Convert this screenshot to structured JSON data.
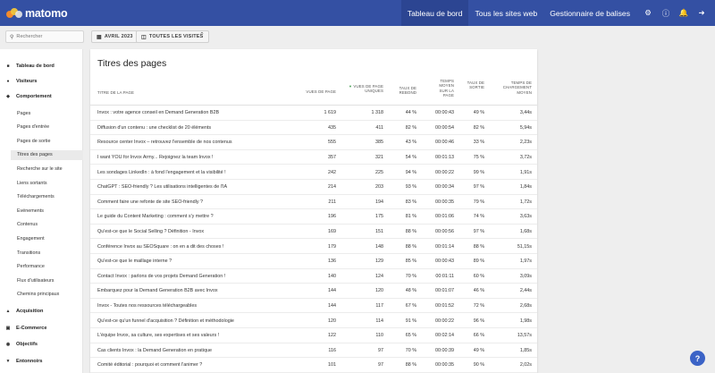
{
  "brand": {
    "name": "matomo",
    "colors": {
      "topbar": "#3450a3",
      "accent": "#3b63c6"
    }
  },
  "topnav": [
    {
      "label": "Tableau de bord",
      "active": true
    },
    {
      "label": "Tous les sites web",
      "active": false
    },
    {
      "label": "Gestionnaire de balises",
      "active": false
    }
  ],
  "topicons": [
    "gear-icon",
    "info-icon",
    "bell-icon",
    "logout-icon"
  ],
  "controls": {
    "search_placeholder": "Rechercher",
    "period_label": "AVRIL 2023",
    "segment_label": "TOUTES LES VISITES"
  },
  "sidebar": {
    "categories": [
      {
        "label": "Tableau de bord",
        "icon": "dashboard-icon"
      },
      {
        "label": "Visiteurs",
        "icon": "visitors-icon"
      },
      {
        "label": "Comportement",
        "icon": "behaviour-icon"
      },
      {
        "label": "Acquisition",
        "icon": "acquisition-icon"
      },
      {
        "label": "E-Commerce",
        "icon": "ecommerce-icon"
      },
      {
        "label": "Objectifs",
        "icon": "goals-icon"
      },
      {
        "label": "Entonnoirs",
        "icon": "funnels-icon"
      }
    ],
    "items": [
      "Pages",
      "Pages d'entrée",
      "Pages de sortie",
      "Titres des pages",
      "Recherche sur le site",
      "Liens sortants",
      "Téléchargements",
      "Evénements",
      "Contenus",
      "Engagement",
      "Transitions",
      "Performance",
      "Flux d'utilisateurs",
      "Chemins principaux"
    ],
    "active_item": "Titres des pages"
  },
  "report": {
    "title": "Titres des pages",
    "columns": {
      "label": "TITRE DE LA PAGE",
      "pageviews": "VUES DE PAGE",
      "unique": "VUES DE PAGE UNIQUES",
      "bounce": "TAUX DE REBOND",
      "time": "TEMPS MOYEN SUR LA PAGE",
      "exit": "TAUX DE SORTIE",
      "load": "TEMPS DE CHARGEMENT MOYEN"
    },
    "rows": [
      {
        "label": "Invox : votre agence conseil en Demand Generation B2B",
        "pageviews": "1 619",
        "unique": "1 318",
        "bounce": "44 %",
        "time": "00:00:43",
        "exit": "49 %",
        "load": "3,44s"
      },
      {
        "label": "Diffusion d'un contenu : une checklist de 20 éléments",
        "pageviews": "435",
        "unique": "411",
        "bounce": "82 %",
        "time": "00:00:54",
        "exit": "82 %",
        "load": "5,94s"
      },
      {
        "label": "Resource center Invox – retrouvez l'ensemble de nos contenus",
        "pageviews": "555",
        "unique": "385",
        "bounce": "43 %",
        "time": "00:00:46",
        "exit": "33 %",
        "load": "2,23s"
      },
      {
        "label": "I want YOU for Invox Army... Rejoignez la team Invox !",
        "pageviews": "357",
        "unique": "321",
        "bounce": "54 %",
        "time": "00:01:13",
        "exit": "75 %",
        "load": "3,72s"
      },
      {
        "label": "Les sondages LinkedIn : à fond l'engagement et la visibilité !",
        "pageviews": "242",
        "unique": "225",
        "bounce": "94 %",
        "time": "00:00:22",
        "exit": "99 %",
        "load": "1,91s"
      },
      {
        "label": "ChatGPT : SEO-friendly ? Les utilisations intelligentes de l'IA",
        "pageviews": "214",
        "unique": "203",
        "bounce": "93 %",
        "time": "00:00:34",
        "exit": "97 %",
        "load": "1,84s"
      },
      {
        "label": "Comment faire une refonte de site SEO-friendly ?",
        "pageviews": "211",
        "unique": "194",
        "bounce": "83 %",
        "time": "00:00:35",
        "exit": "79 %",
        "load": "1,72s"
      },
      {
        "label": "Le guide du Content Marketing : comment s'y mettre ?",
        "pageviews": "196",
        "unique": "175",
        "bounce": "81 %",
        "time": "00:01:06",
        "exit": "74 %",
        "load": "3,63s"
      },
      {
        "label": "Qu'est-ce que le Social Selling ? Définition - Invox",
        "pageviews": "169",
        "unique": "151",
        "bounce": "88 %",
        "time": "00:00:56",
        "exit": "97 %",
        "load": "1,68s"
      },
      {
        "label": "Conférence Invox au SEOSquare : on en a dit des choses !",
        "pageviews": "179",
        "unique": "148",
        "bounce": "88 %",
        "time": "00:01:14",
        "exit": "88 %",
        "load": "51,15s"
      },
      {
        "label": "Qu'est-ce que le maillage interne ?",
        "pageviews": "136",
        "unique": "129",
        "bounce": "85 %",
        "time": "00:00:43",
        "exit": "89 %",
        "load": "1,97s"
      },
      {
        "label": "Contact Invox : parlons de vos projets Demand Generation !",
        "pageviews": "140",
        "unique": "124",
        "bounce": "70 %",
        "time": "00:01:11",
        "exit": "60 %",
        "load": "3,09s"
      },
      {
        "label": "Embarquez pour la Demand Generation B2B avec Invox",
        "pageviews": "144",
        "unique": "120",
        "bounce": "48 %",
        "time": "00:01:07",
        "exit": "46 %",
        "load": "2,44s"
      },
      {
        "label": "Invox - Toutes nos ressources téléchargeables",
        "pageviews": "144",
        "unique": "117",
        "bounce": "67 %",
        "time": "00:01:52",
        "exit": "72 %",
        "load": "2,68s"
      },
      {
        "label": "Qu'est-ce qu'un funnel d'acquisition ? Définition et méthodologie",
        "pageviews": "120",
        "unique": "114",
        "bounce": "91 %",
        "time": "00:00:22",
        "exit": "96 %",
        "load": "1,98s"
      },
      {
        "label": "L'équipe Invox, sa culture, ses expertises et ses valeurs !",
        "pageviews": "122",
        "unique": "110",
        "bounce": "65 %",
        "time": "00:02:14",
        "exit": "66 %",
        "load": "13,57s"
      },
      {
        "label": "Cas clients Invox : la Demand Generation en pratique",
        "pageviews": "116",
        "unique": "97",
        "bounce": "70 %",
        "time": "00:00:39",
        "exit": "49 %",
        "load": "1,85s"
      },
      {
        "label": "Comité éditorial : pourquoi et comment l'animer ?",
        "pageviews": "101",
        "unique": "97",
        "bounce": "88 %",
        "time": "00:00:35",
        "exit": "90 %",
        "load": "2,02s"
      }
    ]
  }
}
